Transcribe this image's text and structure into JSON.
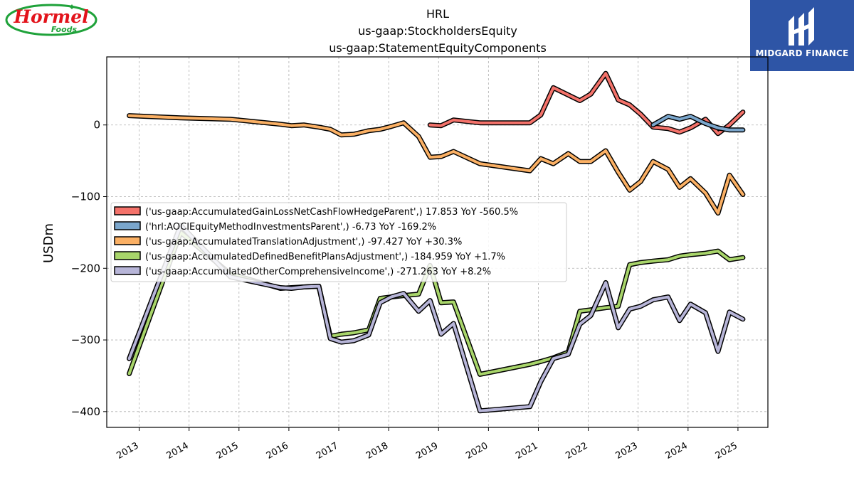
{
  "header": {
    "title_lines": [
      "HRL",
      "us-gaap:StockholdersEquity",
      "us-gaap:StatementEquityComponents"
    ],
    "left_logo": {
      "line1": "Hormel",
      "line2": "Foods"
    },
    "right_logo": {
      "text": "MIDGARD FINANCE"
    }
  },
  "colors": {
    "series_1": "#f4726a",
    "series_2": "#7aa6cc",
    "series_3": "#fbb064",
    "series_4": "#a8d56a",
    "series_5": "#b7b5d8",
    "outline": "#000000",
    "right_logo_bg": "#2e55a6",
    "left_logo_red": "#e3131b",
    "left_logo_green": "#1fa23a"
  },
  "chart_data": {
    "type": "line",
    "title": "HRL\nus-gaap:StockholdersEquity\nus-gaap:StatementEquityComponents",
    "ylabel": "USDm",
    "xlabel": "",
    "ylim": [
      -422,
      95
    ],
    "xlim": [
      2012.35,
      2025.6
    ],
    "yticks": [
      0,
      -100,
      -200,
      -300,
      -400
    ],
    "ytick_labels": [
      "0",
      "−100",
      "−200",
      "−300",
      "−400"
    ],
    "xticks": [
      2013,
      2014,
      2015,
      2016,
      2017,
      2018,
      2019,
      2020,
      2021,
      2022,
      2023,
      2024,
      2025
    ],
    "xtick_labels": [
      "2013",
      "2014",
      "2015",
      "2016",
      "2017",
      "2018",
      "2019",
      "2020",
      "2021",
      "2022",
      "2023",
      "2024",
      "2025"
    ],
    "grid": true,
    "legend_placement": "center-left",
    "series": [
      {
        "name": "('us-gaap:AccumulatedGainLossNetCashFlowHedgeParent',) 17.853 YoY -560.5%",
        "color_key": "series_1",
        "points": [
          [
            2018.83,
            0
          ],
          [
            2019.05,
            -1
          ],
          [
            2019.3,
            7
          ],
          [
            2019.83,
            3
          ],
          [
            2020.83,
            3
          ],
          [
            2021.05,
            14
          ],
          [
            2021.3,
            52
          ],
          [
            2021.83,
            34
          ],
          [
            2022.05,
            43
          ],
          [
            2022.35,
            72
          ],
          [
            2022.6,
            35
          ],
          [
            2022.83,
            28
          ],
          [
            2023.05,
            15
          ],
          [
            2023.3,
            -3
          ],
          [
            2023.6,
            -5
          ],
          [
            2023.83,
            -10
          ],
          [
            2024.05,
            -4
          ],
          [
            2024.35,
            8
          ],
          [
            2024.6,
            -12
          ],
          [
            2024.83,
            0
          ],
          [
            2025.1,
            18
          ]
        ]
      },
      {
        "name": "('hrl:AOCIEquityMethodInvestmentsParent',) -6.73 YoY -169.2%",
        "color_key": "series_2",
        "points": [
          [
            2023.3,
            0
          ],
          [
            2023.6,
            12
          ],
          [
            2023.83,
            8
          ],
          [
            2024.05,
            12
          ],
          [
            2024.35,
            2
          ],
          [
            2024.6,
            -4
          ],
          [
            2024.83,
            -7
          ],
          [
            2025.1,
            -7
          ]
        ]
      },
      {
        "name": "('us-gaap:AccumulatedTranslationAdjustment',) -97.427 YoY +30.3%",
        "color_key": "series_3",
        "points": [
          [
            2012.8,
            13
          ],
          [
            2013.83,
            10
          ],
          [
            2014.83,
            8
          ],
          [
            2015.83,
            1
          ],
          [
            2016.05,
            -1
          ],
          [
            2016.3,
            0
          ],
          [
            2016.6,
            -3
          ],
          [
            2016.83,
            -6
          ],
          [
            2017.05,
            -14
          ],
          [
            2017.3,
            -13
          ],
          [
            2017.6,
            -8
          ],
          [
            2017.83,
            -6
          ],
          [
            2018.05,
            -2
          ],
          [
            2018.3,
            3
          ],
          [
            2018.6,
            -16
          ],
          [
            2018.83,
            -45
          ],
          [
            2019.05,
            -44
          ],
          [
            2019.3,
            -37
          ],
          [
            2019.83,
            -54
          ],
          [
            2020.83,
            -64
          ],
          [
            2021.05,
            -47
          ],
          [
            2021.3,
            -54
          ],
          [
            2021.6,
            -40
          ],
          [
            2021.83,
            -51
          ],
          [
            2022.05,
            -51
          ],
          [
            2022.35,
            -36
          ],
          [
            2022.6,
            -66
          ],
          [
            2022.83,
            -91
          ],
          [
            2023.05,
            -79
          ],
          [
            2023.3,
            -51
          ],
          [
            2023.6,
            -62
          ],
          [
            2023.83,
            -87
          ],
          [
            2024.05,
            -75
          ],
          [
            2024.35,
            -95
          ],
          [
            2024.6,
            -123
          ],
          [
            2024.83,
            -70
          ],
          [
            2025.1,
            -97
          ]
        ]
      },
      {
        "name": "('us-gaap:AccumulatedDefinedBenefitPlansAdjustment',) -184.959 YoY +1.7%",
        "color_key": "series_4",
        "points": [
          [
            2012.8,
            -347
          ],
          [
            2013.83,
            -150
          ],
          [
            2014.83,
            -208
          ],
          [
            2015.83,
            -228
          ],
          [
            2016.05,
            -227
          ],
          [
            2016.3,
            -226
          ],
          [
            2016.6,
            -225
          ],
          [
            2016.83,
            -295
          ],
          [
            2017.05,
            -292
          ],
          [
            2017.3,
            -290
          ],
          [
            2017.6,
            -286
          ],
          [
            2017.83,
            -242
          ],
          [
            2018.05,
            -240
          ],
          [
            2018.3,
            -238
          ],
          [
            2018.6,
            -236
          ],
          [
            2018.83,
            -196
          ],
          [
            2019.05,
            -248
          ],
          [
            2019.3,
            -247
          ],
          [
            2019.83,
            -348
          ],
          [
            2020.83,
            -334
          ],
          [
            2021.05,
            -330
          ],
          [
            2021.3,
            -325
          ],
          [
            2021.6,
            -317
          ],
          [
            2021.83,
            -260
          ],
          [
            2022.05,
            -258
          ],
          [
            2022.35,
            -255
          ],
          [
            2022.6,
            -253
          ],
          [
            2022.83,
            -195
          ],
          [
            2023.05,
            -192
          ],
          [
            2023.3,
            -190
          ],
          [
            2023.6,
            -188
          ],
          [
            2023.83,
            -183
          ],
          [
            2024.05,
            -181
          ],
          [
            2024.35,
            -179
          ],
          [
            2024.6,
            -176
          ],
          [
            2024.83,
            -188
          ],
          [
            2025.1,
            -185
          ]
        ]
      },
      {
        "name": "('us-gaap:AccumulatedOtherComprehensiveIncome',) -271.263 YoY +8.2%",
        "color_key": "series_5",
        "points": [
          [
            2012.8,
            -326
          ],
          [
            2013.83,
            -140
          ],
          [
            2014.83,
            -212
          ],
          [
            2015.83,
            -227
          ],
          [
            2016.05,
            -228
          ],
          [
            2016.3,
            -226
          ],
          [
            2016.6,
            -225
          ],
          [
            2016.83,
            -298
          ],
          [
            2017.05,
            -303
          ],
          [
            2017.3,
            -301
          ],
          [
            2017.6,
            -293
          ],
          [
            2017.83,
            -248
          ],
          [
            2018.05,
            -240
          ],
          [
            2018.3,
            -235
          ],
          [
            2018.6,
            -260
          ],
          [
            2018.83,
            -245
          ],
          [
            2019.05,
            -292
          ],
          [
            2019.3,
            -277
          ],
          [
            2019.83,
            -399
          ],
          [
            2020.83,
            -393
          ],
          [
            2021.05,
            -358
          ],
          [
            2021.3,
            -326
          ],
          [
            2021.6,
            -320
          ],
          [
            2021.83,
            -278
          ],
          [
            2022.05,
            -266
          ],
          [
            2022.35,
            -220
          ],
          [
            2022.6,
            -283
          ],
          [
            2022.83,
            -257
          ],
          [
            2023.05,
            -253
          ],
          [
            2023.3,
            -244
          ],
          [
            2023.6,
            -240
          ],
          [
            2023.83,
            -273
          ],
          [
            2024.05,
            -250
          ],
          [
            2024.35,
            -262
          ],
          [
            2024.6,
            -316
          ],
          [
            2024.83,
            -261
          ],
          [
            2025.1,
            -271
          ]
        ]
      }
    ]
  }
}
